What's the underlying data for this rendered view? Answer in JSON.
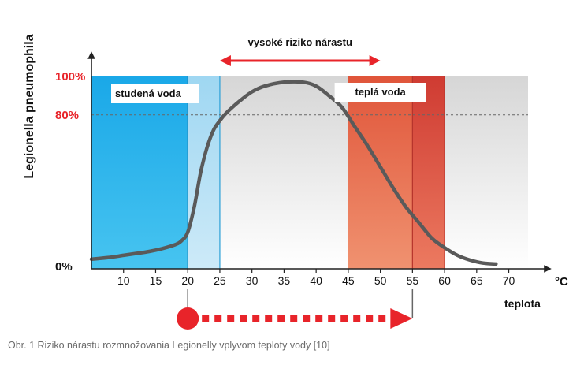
{
  "caption": "Obr. 1 Riziko nárastu rozmnožovania Legionelly vplyvom teploty vody [10]",
  "colors": {
    "cold_zone": "#22aee8",
    "cold_transition": "#a9dcf3",
    "neutral_zone": "#dedede",
    "warm_zone": "#e8704a",
    "hot_zone": "#d94a3c",
    "curve": "#5a5a5a",
    "risk_arrow": "#e8242a",
    "label_red": "#e8242a",
    "text_dark": "#111111"
  },
  "chart_data": {
    "type": "line",
    "xlabel": "teplota",
    "x_unit": "°C",
    "ylabel": "Legionella pneumophila",
    "xlim": [
      5,
      73
    ],
    "ylim": [
      0,
      100
    ],
    "x_ticks": [
      10,
      15,
      20,
      25,
      30,
      35,
      40,
      45,
      50,
      55,
      60,
      65,
      70
    ],
    "y_ticks": [
      {
        "value": 0,
        "label": "0%"
      },
      {
        "value": 80,
        "label": "80%"
      },
      {
        "value": 100,
        "label": "100%"
      }
    ],
    "reference_line": {
      "y": 80,
      "style": "dashed"
    },
    "zones": [
      {
        "from": 5,
        "to": 20,
        "kind": "cold",
        "label": "studená voda"
      },
      {
        "from": 20,
        "to": 25,
        "kind": "cold_transition",
        "label": ""
      },
      {
        "from": 25,
        "to": 45,
        "kind": "neutral",
        "label": ""
      },
      {
        "from": 45,
        "to": 55,
        "kind": "warm",
        "label": "teplá voda"
      },
      {
        "from": 55,
        "to": 60,
        "kind": "hot",
        "label": ""
      },
      {
        "from": 60,
        "to": 73,
        "kind": "neutral",
        "label": ""
      }
    ],
    "risk_range": {
      "from": 25,
      "to": 50,
      "label": "vysoké riziko nárastu"
    },
    "growth_range": {
      "from": 20,
      "to": 55
    },
    "series": [
      {
        "x": [
          5,
          8,
          10,
          12,
          14,
          16,
          18,
          19,
          20,
          21,
          22,
          23,
          24,
          25,
          26,
          28,
          30,
          32,
          35,
          38,
          40,
          42,
          44,
          46,
          48,
          50,
          52,
          54,
          56,
          58,
          60,
          62,
          64,
          66,
          68
        ],
        "values": [
          5,
          6,
          7,
          8,
          9,
          10.5,
          12.5,
          14.5,
          19,
          32,
          50,
          63,
          72,
          77,
          81,
          87,
          92,
          95,
          97,
          97,
          95,
          90,
          84,
          74,
          64,
          53,
          42,
          32,
          24,
          16,
          11,
          7,
          4.5,
          3,
          2.5
        ]
      }
    ]
  }
}
